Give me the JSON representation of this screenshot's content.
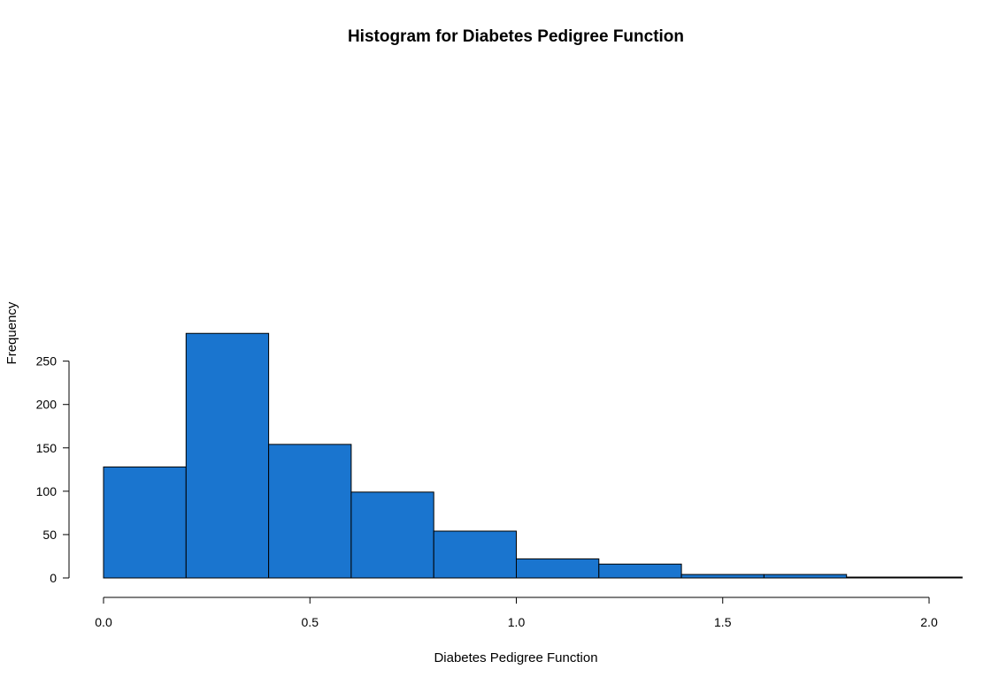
{
  "chart_data": {
    "type": "bar",
    "title": "Histogram for Diabetes Pedigree Function",
    "xlabel": "Diabetes Pedigree Function",
    "ylabel": "Frequency",
    "bins": [
      {
        "start": 0.0,
        "end": 0.2,
        "count": 128
      },
      {
        "start": 0.2,
        "end": 0.4,
        "count": 282
      },
      {
        "start": 0.4,
        "end": 0.6,
        "count": 154
      },
      {
        "start": 0.6,
        "end": 0.8,
        "count": 99
      },
      {
        "start": 0.8,
        "end": 1.0,
        "count": 54
      },
      {
        "start": 1.0,
        "end": 1.2,
        "count": 22
      },
      {
        "start": 1.2,
        "end": 1.4,
        "count": 16
      },
      {
        "start": 1.4,
        "end": 1.6,
        "count": 4
      },
      {
        "start": 1.6,
        "end": 1.8,
        "count": 4
      },
      {
        "start": 1.8,
        "end": 2.0,
        "count": 1
      },
      {
        "start": 2.0,
        "end": 2.2,
        "count": 1
      }
    ],
    "x_ticks": [
      0.0,
      0.5,
      1.0,
      1.5,
      2.0
    ],
    "x_tick_labels": [
      "0.0",
      "0.5",
      "1.0",
      "1.5",
      "2.0"
    ],
    "y_ticks": [
      0,
      50,
      100,
      150,
      200,
      250
    ],
    "y_tick_labels": [
      "0",
      "50",
      "100",
      "150",
      "200",
      "250"
    ],
    "xlim": [
      0.0,
      2.08
    ],
    "ylim": [
      0,
      282
    ],
    "bar_color": "#1a75cf",
    "grid": false,
    "legend": "none"
  }
}
